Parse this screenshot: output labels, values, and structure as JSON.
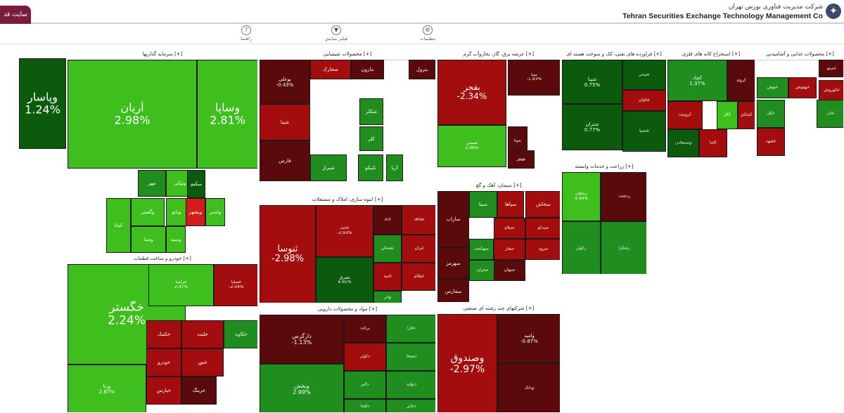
{
  "header": {
    "site_button": "سایت قد",
    "company_fa": "شرکت مدیریت فناوری بورس تهران",
    "company_en": "Tehran Securities Exchange Technology Management Co",
    "logo_icon": "tse-logo-icon"
  },
  "menu": [
    {
      "name": "guide",
      "label": "راهنما",
      "icon": "?"
    },
    {
      "name": "selection",
      "label": "فیلتر نمایش",
      "icon": "▼"
    },
    {
      "name": "settings",
      "label": "تنظیمات",
      "icon": "⚙"
    }
  ],
  "colors": {
    "dark_red": "#5a0a0a",
    "red": "#a30d0d",
    "bright_red": "#d41c1c",
    "dark_green": "#0c5a0c",
    "green": "#1f8e1f",
    "bright_green": "#3fbf1e"
  },
  "sectors": [
    {
      "title": "",
      "tiles": [
        {
          "name": "وپاسار",
          "pct": "1.24%",
          "c": "dark_green"
        }
      ]
    },
    {
      "title": "سرمایه گذاریها [+]",
      "tiles": [
        {
          "name": "آریان",
          "pct": "2.98%",
          "c": "bright_green"
        },
        {
          "name": "وساپا",
          "pct": "2.81%",
          "c": "bright_green"
        },
        {
          "name": "مهر",
          "pct": "",
          "c": "green"
        },
        {
          "name": "ونیکی",
          "pct": "",
          "c": "bright_green"
        },
        {
          "name": "وگستر",
          "pct": "",
          "c": "bright_green"
        },
        {
          "name": "وصنا",
          "pct": "",
          "c": "bright_green"
        },
        {
          "name": "کیانا",
          "pct": "",
          "c": "bright_green"
        },
        {
          "name": "وبانو",
          "pct": "",
          "c": "bright_green"
        },
        {
          "name": "سکیم",
          "pct": "",
          "c": "dark_green"
        },
        {
          "name": "وبشهر",
          "pct": "",
          "c": "bright_red"
        },
        {
          "name": "وسپه",
          "pct": "",
          "c": "bright_green"
        },
        {
          "name": "وغدیر",
          "pct": "",
          "c": "bright_green"
        }
      ]
    },
    {
      "title": "محصولات شیمیایی [+]",
      "tiles": [
        {
          "name": "بوعلی",
          "pct": "-0.43%",
          "c": "dark_red"
        },
        {
          "name": "مارون",
          "pct": "",
          "c": "dark_red"
        },
        {
          "name": "پترول",
          "pct": "",
          "c": "dark_red"
        },
        {
          "name": "شکلر",
          "pct": "",
          "c": "green"
        },
        {
          "name": "شخارک",
          "pct": "",
          "c": "red"
        },
        {
          "name": "شپنا",
          "pct": "",
          "c": "red"
        },
        {
          "name": "شیراز",
          "pct": "",
          "c": "green"
        },
        {
          "name": "تاپیکو",
          "pct": "",
          "c": "green"
        },
        {
          "name": "آریا",
          "pct": "",
          "c": "green"
        },
        {
          "name": "کلر",
          "pct": "",
          "c": "green"
        },
        {
          "name": "فارس",
          "pct": "",
          "c": "dark_red"
        }
      ]
    },
    {
      "title": "عرضه برق، گاز، بخاروآب گرم [+]",
      "tiles": [
        {
          "name": "بفجر",
          "pct": "-2.34%",
          "c": "red"
        },
        {
          "name": "شمس",
          "pct": "2.98%",
          "c": "bright_green"
        },
        {
          "name": "مپنا",
          "pct": "-1.93%",
          "c": "dark_red"
        },
        {
          "name": "بمپنا",
          "pct": "",
          "c": "dark_red"
        },
        {
          "name": "بهپور",
          "pct": "",
          "c": "dark_red"
        }
      ]
    },
    {
      "title": "فراورده های نفتی، کک و سوخت هسته ای [+]",
      "tiles": [
        {
          "name": "شپنا",
          "pct": "0.75%",
          "c": "dark_green"
        },
        {
          "name": "شتران",
          "pct": "0.77%",
          "c": "dark_green"
        },
        {
          "name": "شبندر",
          "pct": "",
          "c": "dark_green"
        },
        {
          "name": "شاوان",
          "pct": "",
          "c": "red"
        },
        {
          "name": "شسپا",
          "pct": "",
          "c": "dark_green"
        }
      ]
    },
    {
      "title": "استخراج کانه های فلزی [+]",
      "tiles": [
        {
          "name": "کچاد",
          "pct": "1.37%",
          "c": "green"
        },
        {
          "name": "کروی",
          "pct": "",
          "c": "dark_red"
        },
        {
          "name": "کگل",
          "pct": "",
          "c": "bright_green"
        },
        {
          "name": "کروبیت",
          "pct": "",
          "c": "red"
        },
        {
          "name": "کمنگنز",
          "pct": "",
          "c": "red"
        },
        {
          "name": "کاما",
          "pct": "",
          "c": "red"
        },
        {
          "name": "وسمعادن",
          "pct": "",
          "c": "dark_green"
        }
      ]
    },
    {
      "title": "محصولات غذایی و آشامیدنی [+]",
      "tiles": [
        {
          "name": "غمینو",
          "pct": "",
          "c": "dark_red"
        },
        {
          "name": "غنوش",
          "pct": "",
          "c": "green"
        },
        {
          "name": "غبهنوش",
          "pct": "",
          "c": "red"
        },
        {
          "name": "غکوروش",
          "pct": "",
          "c": "red"
        },
        {
          "name": "غگل",
          "pct": "",
          "c": "green"
        },
        {
          "name": "غاذر",
          "pct": "",
          "c": "green"
        },
        {
          "name": "غشهد",
          "pct": "",
          "c": "red"
        }
      ]
    },
    {
      "title": "انبوه سازی، املاک و مستغلات [+]",
      "tiles": [
        {
          "name": "ثنوسا",
          "pct": "-2.98%",
          "c": "red"
        },
        {
          "name": "ثاخت",
          "pct": "-2.93%",
          "c": "red"
        },
        {
          "name": "ثاباد",
          "pct": "",
          "c": "dark_red"
        },
        {
          "name": "ثشاهد",
          "pct": "",
          "c": "red"
        },
        {
          "name": "ثشرق",
          "pct": "6.91%",
          "c": "dark_green"
        },
        {
          "name": "ثمسکن",
          "pct": "",
          "c": "green"
        },
        {
          "name": "ثتران",
          "pct": "",
          "c": "red"
        },
        {
          "name": "ثامید",
          "pct": "",
          "c": "red"
        },
        {
          "name": "وآذر",
          "pct": "",
          "c": "green"
        },
        {
          "name": "ثنظام",
          "pct": "",
          "c": "red"
        }
      ]
    },
    {
      "title": "سیمان، آهک و گچ [+]",
      "tiles": [
        {
          "name": "ساراب",
          "pct": "",
          "c": "dark_red"
        },
        {
          "name": "سیتا",
          "pct": "",
          "c": "green"
        },
        {
          "name": "سپاها",
          "pct": "",
          "c": "red"
        },
        {
          "name": "سخاش",
          "pct": "",
          "c": "red"
        },
        {
          "name": "سیدکو",
          "pct": "",
          "c": "red"
        },
        {
          "name": "سیلام",
          "pct": "",
          "c": "red"
        },
        {
          "name": "سهرمز",
          "pct": "",
          "c": "dark_red"
        },
        {
          "name": "سفار",
          "pct": "",
          "c": "red"
        },
        {
          "name": "سرود",
          "pct": "",
          "c": "red"
        },
        {
          "name": "سهگمت",
          "pct": "",
          "c": "green"
        },
        {
          "name": "سفارس",
          "pct": "",
          "c": "dark_red"
        },
        {
          "name": "ستران",
          "pct": "",
          "c": "green"
        },
        {
          "name": "سبهان",
          "pct": "",
          "c": "dark_red"
        }
      ]
    },
    {
      "title": "زراعت و خدمات وابسته [+]",
      "tiles": [
        {
          "name": "زماهان",
          "pct": "4.99%",
          "c": "bright_green"
        },
        {
          "name": "زکوثر",
          "pct": "",
          "c": "green"
        },
        {
          "name": "زشگزا",
          "pct": "",
          "c": "green"
        },
        {
          "name": "زدشت",
          "pct": "",
          "c": "dark_red"
        }
      ]
    },
    {
      "title": "خودرو و ساخت قطعات [+]",
      "tiles": [
        {
          "name": "خگستر",
          "pct": "2.24%",
          "c": "bright_green"
        },
        {
          "name": "خزامیا",
          "pct": "2.97%",
          "c": "bright_green"
        },
        {
          "name": "خساپا",
          "pct": "-2.04%",
          "c": "red"
        },
        {
          "name": "ورنا",
          "pct": "2.87%",
          "c": "bright_green"
        },
        {
          "name": "خکمک",
          "pct": "",
          "c": "red"
        },
        {
          "name": "خودرو",
          "pct": "",
          "c": "red"
        },
        {
          "name": "خپارس",
          "pct": "",
          "c": "red"
        },
        {
          "name": "خلنت",
          "pct": "",
          "c": "red"
        },
        {
          "name": "خکاوه",
          "pct": "",
          "c": "green"
        },
        {
          "name": "ختور",
          "pct": "",
          "c": "red"
        },
        {
          "name": "خرینگ",
          "pct": "",
          "c": "dark_red"
        }
      ]
    },
    {
      "title": "مواد و محصولات دارویی [+]",
      "tiles": [
        {
          "name": "دارگرس",
          "pct": "-1.13%",
          "c": "dark_red"
        },
        {
          "name": "وپخش",
          "pct": "2.99%",
          "c": "green"
        },
        {
          "name": "برکت",
          "pct": "",
          "c": "dark_red"
        },
        {
          "name": "دکوثر",
          "pct": "",
          "c": "red"
        },
        {
          "name": "دالبر",
          "pct": "",
          "c": "green"
        },
        {
          "name": "دفارا",
          "pct": "",
          "c": "green"
        },
        {
          "name": "دسبحا",
          "pct": "",
          "c": "green"
        },
        {
          "name": "دتولید",
          "pct": "",
          "c": "green"
        },
        {
          "name": "دلقما",
          "pct": "",
          "c": "green"
        },
        {
          "name": "دجابر",
          "pct": "",
          "c": "green"
        }
      ]
    },
    {
      "title": "شرکتهای چند رشته ای صنعتی [+]",
      "tiles": [
        {
          "name": "وصندوق",
          "pct": "-2.97%",
          "c": "red"
        },
        {
          "name": "وامید",
          "pct": "-0.87%",
          "c": "dark_red"
        },
        {
          "name": "وبانک",
          "pct": "",
          "c": "dark_red"
        }
      ]
    }
  ]
}
